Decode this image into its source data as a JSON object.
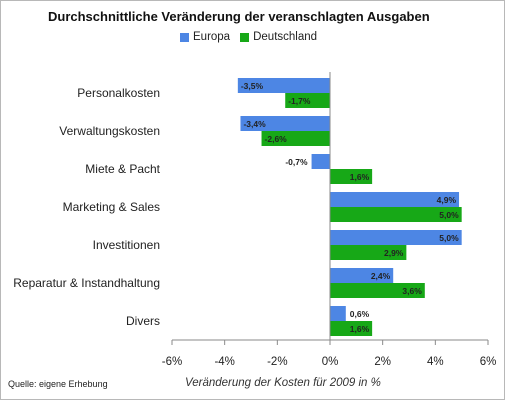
{
  "chart_data": {
    "type": "bar",
    "orientation": "horizontal",
    "title": "Durchschnittliche Veränderung der veranschlagten Ausgaben",
    "xlabel": "Veränderung der Kosten für 2009 in %",
    "ylabel": "",
    "source": "Quelle: eigene Erhebung",
    "categories": [
      "Personalkosten",
      "Verwaltungskosten",
      "Miete & Pacht",
      "Marketing & Sales",
      "Investitionen",
      "Reparatur & Instandhaltung",
      "Divers"
    ],
    "series": [
      {
        "name": "Europa",
        "color": "#4d86e4",
        "values": [
          -3.5,
          -3.4,
          -0.7,
          4.9,
          5.0,
          2.4,
          0.6
        ],
        "labels": [
          "-3,5%",
          "-3,4%",
          "-0,7%",
          "4,9%",
          "5,0%",
          "2,4%",
          "0,6%"
        ]
      },
      {
        "name": "Deutschland",
        "color": "#17a817",
        "values": [
          -1.7,
          -2.6,
          1.6,
          5.0,
          2.9,
          3.6,
          1.6
        ],
        "labels": [
          "-1,7%",
          "-2,6%",
          "1,6%",
          "5,0%",
          "2,9%",
          "3,6%",
          "1,6%"
        ]
      }
    ],
    "xlim": [
      -6,
      6
    ],
    "xticks": [
      -6,
      -4,
      -2,
      0,
      2,
      4,
      6
    ],
    "xtick_labels": [
      "-6%",
      "-4%",
      "-2%",
      "0%",
      "2%",
      "4%",
      "6%"
    ],
    "legend_position": "top",
    "grid": false
  }
}
